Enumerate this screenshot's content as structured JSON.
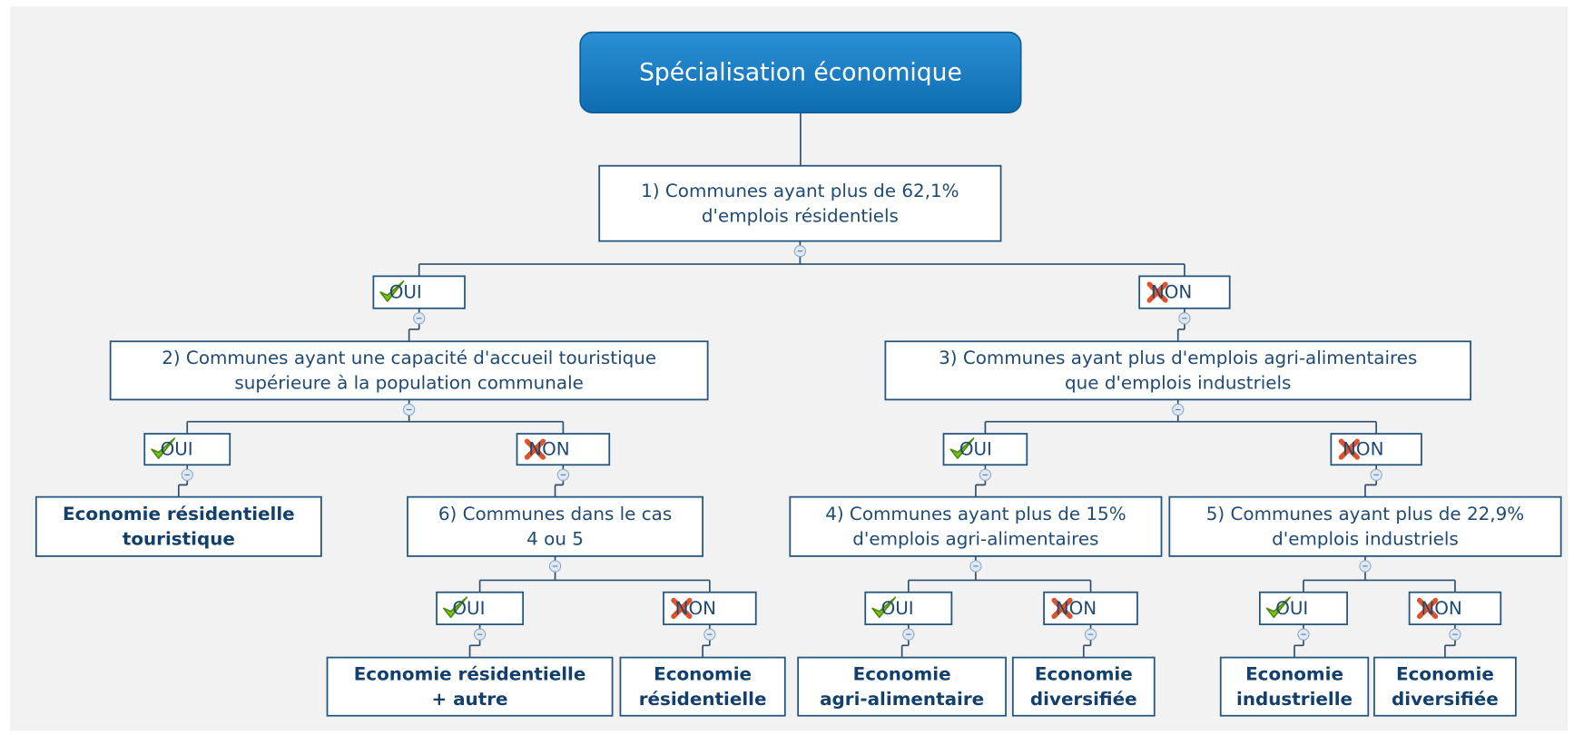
{
  "title": "Spécialisation économique",
  "nodes": [
    {
      "lines": [
        "1) Communes ayant plus de 62,1%",
        "d'emplois résidentiels"
      ]
    },
    {
      "label": "OUI"
    },
    {
      "label": "NON"
    },
    {
      "lines": [
        "2) Communes ayant une capacité d'accueil touristique",
        "supérieure à la population communale"
      ]
    },
    {
      "lines": [
        "3) Communes ayant plus d'emplois agri-alimentaires",
        "que d'emplois industriels"
      ]
    },
    {
      "label": "OUI"
    },
    {
      "label": "NON"
    },
    {
      "lines": [
        "Economie résidentielle",
        "touristique"
      ]
    },
    {
      "lines": [
        "6) Communes dans le cas",
        "4 ou 5"
      ]
    },
    {
      "label": "OUI"
    },
    {
      "label": "NON"
    },
    {
      "lines": [
        "4) Communes ayant plus de 15%",
        "d'emplois agri-alimentaires"
      ]
    },
    {
      "lines": [
        "5) Communes ayant plus de 22,9%",
        "d'emplois industriels"
      ]
    },
    {
      "label": "OUI"
    },
    {
      "label": "NON"
    },
    {
      "label": "OUI"
    },
    {
      "label": "NON"
    },
    {
      "label": "OUI"
    },
    {
      "label": "NON"
    },
    {
      "lines": [
        "Economie résidentielle",
        "+ autre"
      ]
    },
    {
      "lines": [
        "Economie",
        "résidentielle"
      ]
    },
    {
      "lines": [
        "Economie",
        "agri-alimentaire"
      ]
    },
    {
      "lines": [
        "Economie",
        "diversifiée"
      ]
    },
    {
      "lines": [
        "Economie",
        "industrielle"
      ]
    },
    {
      "lines": [
        "Economie",
        "diversifiée"
      ]
    }
  ]
}
